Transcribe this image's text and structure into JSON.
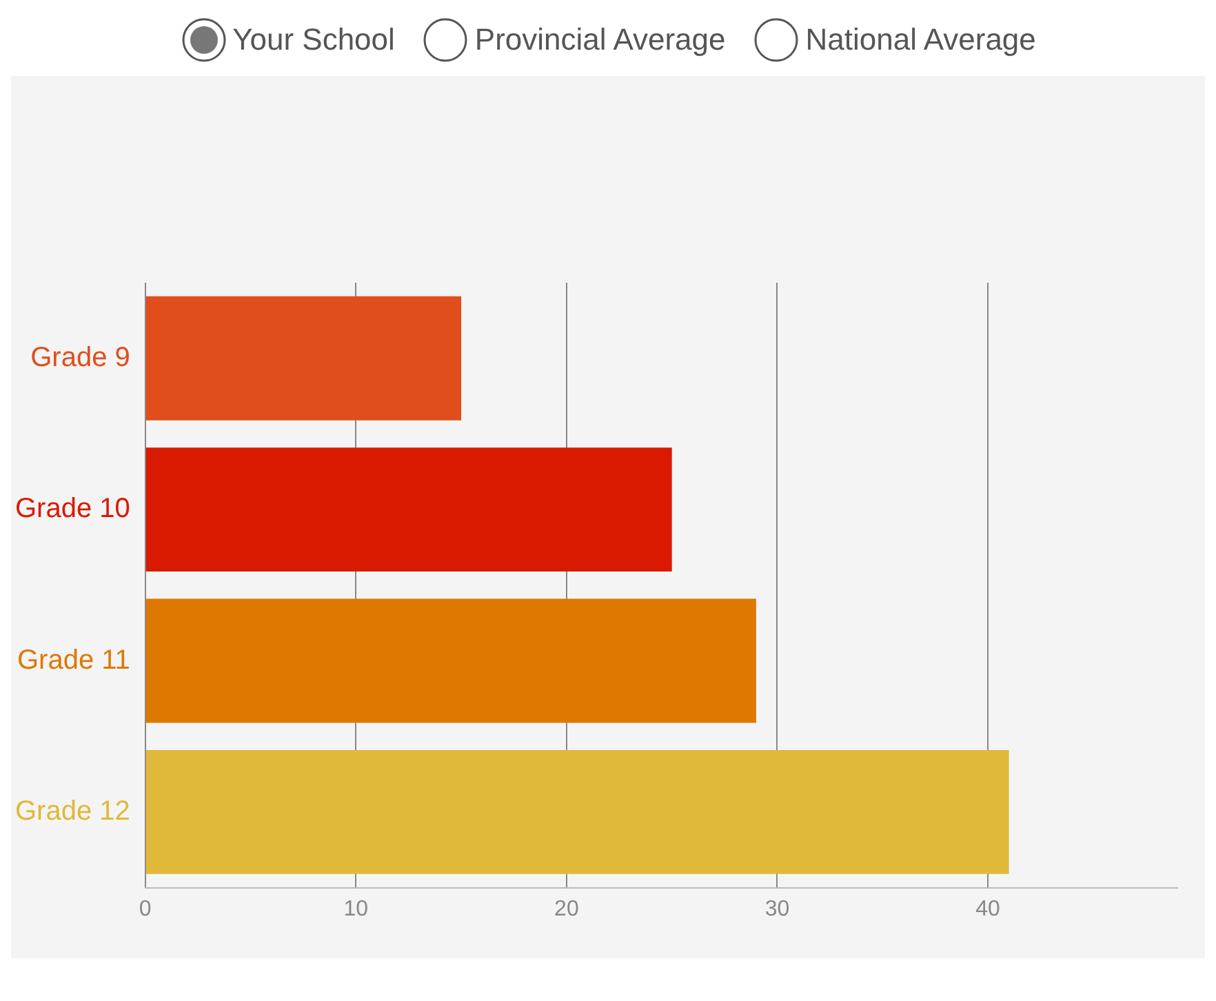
{
  "chart_data": {
    "type": "bar",
    "orientation": "horizontal",
    "categories": [
      "Grade 9",
      "Grade 10",
      "Grade 11",
      "Grade 12"
    ],
    "series": [
      {
        "name": "Your School",
        "colors": [
          "#e04e1c",
          "#d91a00",
          "#dd7800",
          "#e0b83a"
        ],
        "values": [
          15,
          25,
          29,
          41
        ]
      }
    ],
    "annotations": [
      "Provincial Average",
      "National Average"
    ],
    "xlim": [
      0,
      49
    ],
    "xticks": [
      0,
      10,
      20,
      30,
      40
    ],
    "grid": "x",
    "legend": "top"
  }
}
